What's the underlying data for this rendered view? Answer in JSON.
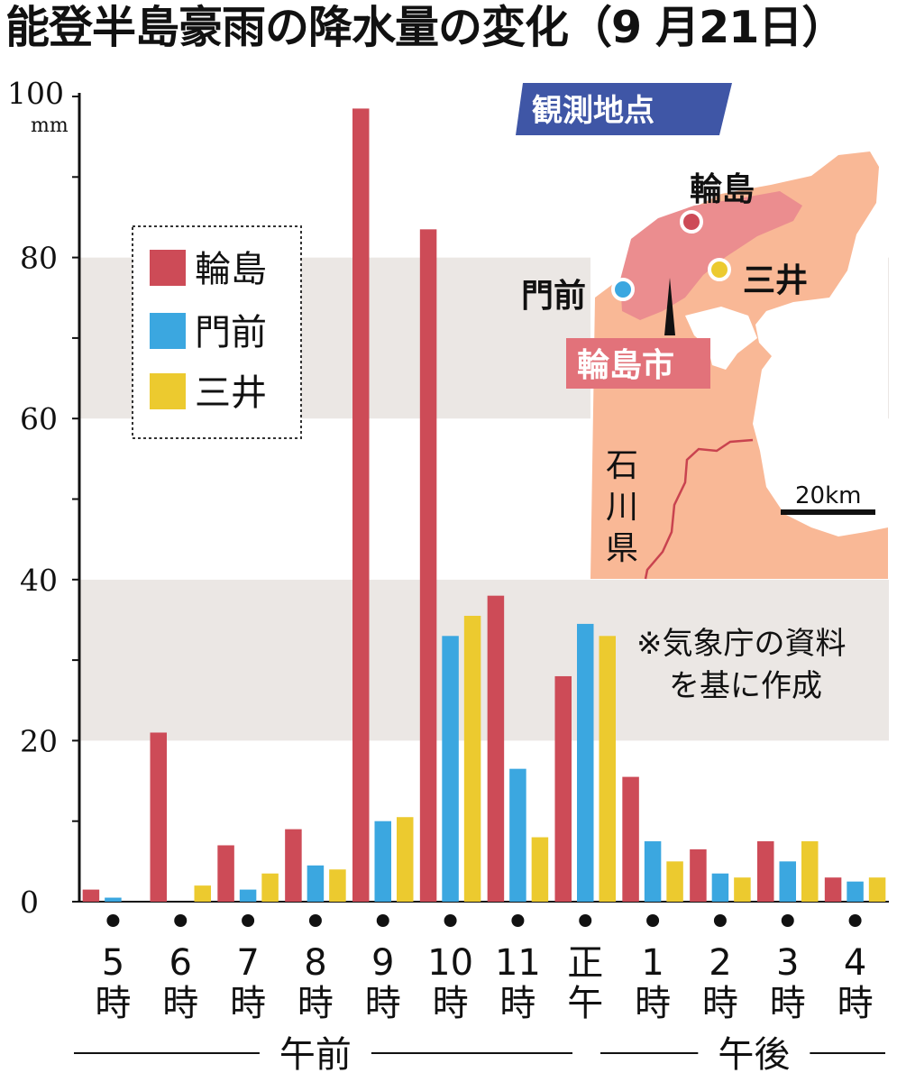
{
  "title": "能登半島豪雨の降水量の変化（9 月21日）",
  "note_lines": [
    "※気象庁の資料",
    "を基に作成"
  ],
  "map": {
    "banner": "観測地点",
    "stations": [
      {
        "label": "輪島",
        "color": "#cd4b57"
      },
      {
        "label": "門前",
        "color": "#3ba7e0"
      },
      {
        "label": "三井",
        "color": "#ecca2f"
      }
    ],
    "city_label": "輪島市",
    "prefecture_label": [
      "石",
      "川",
      "県"
    ],
    "scale_label": "20km"
  },
  "chart_data": {
    "type": "bar",
    "title": "能登半島豪雨の降水量の変化（9 月21日）",
    "y_unit": "mm",
    "ylim": [
      0,
      100
    ],
    "yticks": [
      "0",
      "20",
      "40",
      "60",
      "80",
      "100"
    ],
    "grid": "alternating horizontal bands",
    "legend_position": "upper-left",
    "categories": [
      [
        "5",
        "時"
      ],
      [
        "6",
        "時"
      ],
      [
        "7",
        "時"
      ],
      [
        "8",
        "時"
      ],
      [
        "9",
        "時"
      ],
      [
        "10",
        "時"
      ],
      [
        "11",
        "時"
      ],
      [
        "正",
        "午"
      ],
      [
        "1",
        "時"
      ],
      [
        "2",
        "時"
      ],
      [
        "3",
        "時"
      ],
      [
        "4",
        "時"
      ]
    ],
    "groups": [
      {
        "label": "午前",
        "from": 0,
        "to": 6
      },
      {
        "label": "午後",
        "from": 8,
        "to": 11
      }
    ],
    "series": [
      {
        "name": "輪島",
        "color": "#cd4b57",
        "values": [
          1.5,
          21,
          7,
          9,
          98.5,
          83.5,
          38,
          28,
          15.5,
          6.5,
          7.5,
          3
        ]
      },
      {
        "name": "門前",
        "color": "#3ba7e0",
        "values": [
          0.5,
          0,
          1.5,
          4.5,
          10,
          33,
          16.5,
          34.5,
          7.5,
          3.5,
          5,
          2.5
        ]
      },
      {
        "name": "三井",
        "color": "#ecca2f",
        "values": [
          0,
          2,
          3.5,
          4,
          10.5,
          35.5,
          8,
          33,
          5,
          3,
          7.5,
          3
        ]
      }
    ]
  }
}
